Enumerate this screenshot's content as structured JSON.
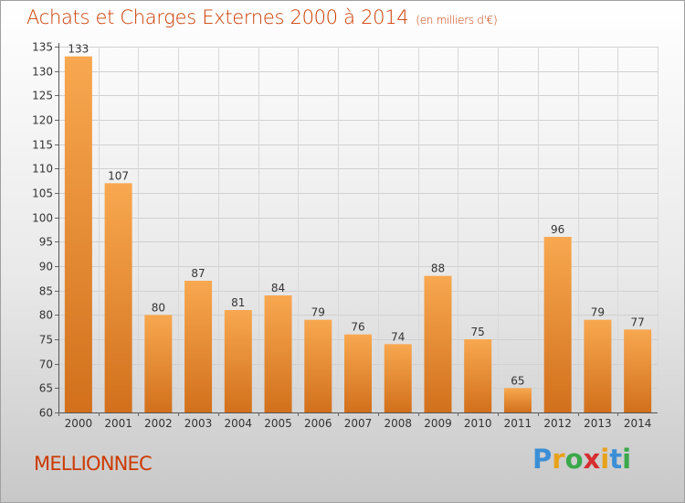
{
  "title": "Achats et Charges Externes 2000 à 2014",
  "subtitle": "(en milliers d'€)",
  "commune": "MELLIONNEC",
  "brand": {
    "letters": [
      "P",
      "r",
      "o",
      "x",
      "i",
      "t",
      "i"
    ],
    "colors": [
      "#3b8fd6",
      "#e8a21a",
      "#3aa84a",
      "#d62e2e",
      "#e8a21a",
      "#3b8fd6",
      "#3aa84a"
    ]
  },
  "colors": {
    "bar": "#f08a2c",
    "title": "#cc3a00"
  },
  "chart_data": {
    "type": "bar",
    "title": "Achats et Charges Externes 2000 à 2014",
    "categories": [
      "2000",
      "2001",
      "2002",
      "2003",
      "2004",
      "2005",
      "2006",
      "2007",
      "2008",
      "2009",
      "2010",
      "2011",
      "2012",
      "2013",
      "2014"
    ],
    "values": [
      133,
      107,
      80,
      87,
      81,
      84,
      79,
      76,
      74,
      88,
      75,
      65,
      96,
      79,
      77
    ],
    "ylim": [
      60,
      135
    ],
    "yticks": [
      60,
      65,
      70,
      75,
      80,
      85,
      90,
      95,
      100,
      105,
      110,
      115,
      120,
      125,
      130,
      135
    ],
    "grid": true,
    "legend": "none"
  }
}
